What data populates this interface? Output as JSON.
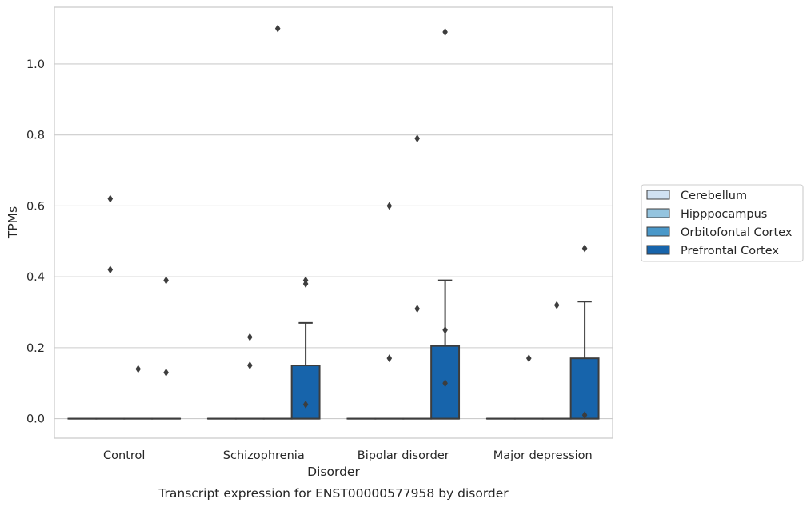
{
  "caption": "Transcript expression for ENST00000577958 by disorder",
  "chart_data": {
    "type": "box",
    "xlabel": "Disorder",
    "ylabel": "TPMs",
    "categories": [
      "Control",
      "Schizophrenia",
      "Bipolar disorder",
      "Major depression"
    ],
    "ylim": [
      -0.055,
      1.16
    ],
    "yticks": [
      0.0,
      0.2,
      0.4,
      0.6,
      0.8,
      1.0
    ],
    "ytick_labels": [
      "0.0",
      "0.2",
      "0.4",
      "0.6",
      "0.8",
      "1.0"
    ],
    "grid": true,
    "legend_position": "right",
    "series": [
      {
        "name": "Cerebellum",
        "color": "#d0e1f2",
        "boxes": [
          {
            "q1": 0,
            "median": 0,
            "q3": 0,
            "whislo": 0,
            "whishi": 0,
            "fliers": []
          },
          {
            "q1": 0,
            "median": 0,
            "q3": 0,
            "whislo": 0,
            "whishi": 0,
            "fliers": []
          },
          {
            "q1": 0,
            "median": 0,
            "q3": 0,
            "whislo": 0,
            "whishi": 0,
            "fliers": []
          },
          {
            "q1": 0,
            "median": 0,
            "q3": 0,
            "whislo": 0,
            "whishi": 0,
            "fliers": []
          }
        ]
      },
      {
        "name": "Hipppocampus",
        "color": "#94c4df",
        "boxes": [
          {
            "q1": 0,
            "median": 0,
            "q3": 0,
            "whislo": 0,
            "whishi": 0,
            "fliers": [
              0.42,
              0.62
            ]
          },
          {
            "q1": 0,
            "median": 0,
            "q3": 0,
            "whislo": 0,
            "whishi": 0,
            "fliers": [
              0.23,
              0.15
            ]
          },
          {
            "q1": 0,
            "median": 0,
            "q3": 0,
            "whislo": 0,
            "whishi": 0,
            "fliers": [
              0.6,
              0.17
            ]
          },
          {
            "q1": 0,
            "median": 0,
            "q3": 0,
            "whislo": 0,
            "whishi": 0,
            "fliers": [
              0.17
            ]
          }
        ]
      },
      {
        "name": "Orbitofontal Cortex",
        "color": "#4a98c9",
        "boxes": [
          {
            "q1": 0,
            "median": 0,
            "q3": 0,
            "whislo": 0,
            "whishi": 0,
            "fliers": [
              0.14
            ]
          },
          {
            "q1": 0,
            "median": 0,
            "q3": 0,
            "whislo": 0,
            "whishi": 0,
            "fliers": [
              1.1
            ]
          },
          {
            "q1": 0,
            "median": 0,
            "q3": 0,
            "whislo": 0,
            "whishi": 0,
            "fliers": [
              0.79,
              0.31
            ]
          },
          {
            "q1": 0,
            "median": 0,
            "q3": 0,
            "whislo": 0,
            "whishi": 0,
            "fliers": [
              0.32
            ]
          }
        ]
      },
      {
        "name": "Prefrontal Cortex",
        "color": "#1764ab",
        "boxes": [
          {
            "q1": 0,
            "median": 0,
            "q3": 0,
            "whislo": 0,
            "whishi": 0,
            "fliers": [
              0.39,
              0.13
            ]
          },
          {
            "q1": 0,
            "median": 0,
            "q3": 0.15,
            "whislo": 0,
            "whishi": 0.27,
            "fliers": [
              0.39,
              0.38,
              0.04
            ]
          },
          {
            "q1": 0,
            "median": 0,
            "q3": 0.205,
            "whislo": 0,
            "whishi": 0.39,
            "fliers": [
              1.09,
              0.25,
              0.1
            ]
          },
          {
            "q1": 0,
            "median": 0,
            "q3": 0.17,
            "whislo": 0,
            "whishi": 0.33,
            "fliers": [
              0.48,
              0.01
            ]
          }
        ]
      }
    ]
  }
}
